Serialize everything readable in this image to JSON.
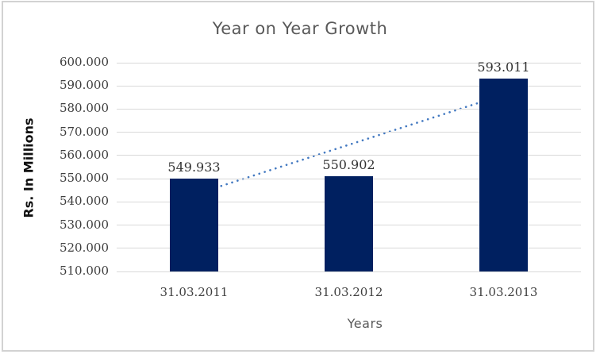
{
  "frame": {
    "border_color": "#d2d2d2"
  },
  "chart_data": {
    "type": "bar",
    "title": "Year on Year Growth",
    "xlabel": "Years",
    "ylabel": "Rs. In Millions",
    "categories": [
      "31.03.2011",
      "31.03.2012",
      "31.03.2013"
    ],
    "values": [
      549.933,
      550.902,
      593.011
    ],
    "data_labels": [
      "549.933",
      "550.902",
      "593.011"
    ],
    "y_tick_values": [
      600,
      590,
      580,
      570,
      560,
      550,
      540,
      530,
      520,
      510
    ],
    "y_tick_labels": [
      "600.000",
      "590.000",
      "580.000",
      "570.000",
      "560.000",
      "550.000",
      "540.000",
      "530.000",
      "520.000",
      "510.000"
    ],
    "ylim": [
      510,
      600
    ],
    "grid": true,
    "legend": "none",
    "colors": {
      "bar": "#002060",
      "gridline": "#d9d9d9",
      "title": "#595959",
      "axis_title": "#595959",
      "ylabel_text": "#111111",
      "tick_label": "#3f3f3f",
      "data_label": "#333333",
      "trendline": "#4379c1"
    },
    "trendline": {
      "type": "linear",
      "style": "dotted"
    }
  }
}
